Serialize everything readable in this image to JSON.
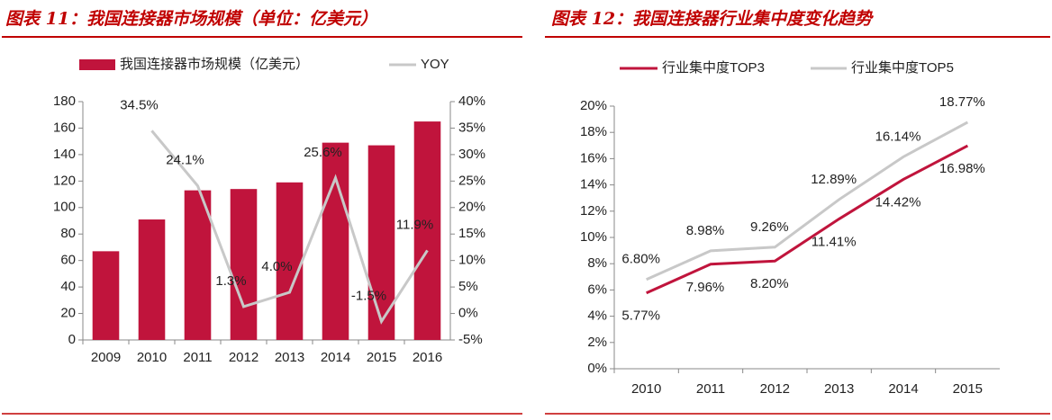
{
  "chart_data": [
    {
      "type": "bar",
      "title": "图表 11：我国连接器市场规模（单位：亿美元）",
      "categories": [
        "2009",
        "2010",
        "2011",
        "2012",
        "2013",
        "2014",
        "2015",
        "2016"
      ],
      "series": [
        {
          "name": "我国连接器市场规模（亿美元）",
          "type": "bar",
          "color": "#c0143c",
          "values": [
            67,
            91,
            113,
            114,
            119,
            149,
            147,
            165
          ]
        },
        {
          "name": "YOY",
          "type": "line",
          "axis": "y2",
          "color": "#c8c8c8",
          "values": [
            null,
            34.5,
            24.1,
            1.3,
            4.0,
            25.6,
            -1.5,
            11.9
          ],
          "value_labels": [
            null,
            "34.5%",
            "24.1%",
            "1.3%",
            "4.0%",
            "25.6%",
            "-1.5%",
            "11.9%"
          ]
        }
      ],
      "ylim": [
        0,
        180
      ],
      "yticks": [
        0,
        20,
        40,
        60,
        80,
        100,
        120,
        140,
        160,
        180
      ],
      "y2lim": [
        -5,
        40
      ],
      "y2ticks": [
        {
          "value": -5,
          "label": "-5%"
        },
        {
          "value": 0,
          "label": "0%"
        },
        {
          "value": 5,
          "label": "5%"
        },
        {
          "value": 10,
          "label": "10%"
        },
        {
          "value": 15,
          "label": "15%"
        },
        {
          "value": 20,
          "label": "20%"
        },
        {
          "value": 25,
          "label": "25%"
        },
        {
          "value": 30,
          "label": "30%"
        },
        {
          "value": 35,
          "label": "35%"
        },
        {
          "value": 40,
          "label": "40%"
        }
      ],
      "legend": "top",
      "grid": false
    },
    {
      "type": "line",
      "title": "图表 12：我国连接器行业集中度变化趋势",
      "categories": [
        "2010",
        "2011",
        "2012",
        "2013",
        "2014",
        "2015"
      ],
      "series": [
        {
          "name": "行业集中度TOP3",
          "type": "line",
          "color": "#c0143c",
          "values": [
            5.77,
            7.96,
            8.2,
            11.41,
            14.42,
            16.98
          ],
          "value_labels": [
            "5.77%",
            "7.96%",
            "8.20%",
            "11.41%",
            "14.42%",
            "16.98%"
          ]
        },
        {
          "name": "行业集中度TOP5",
          "type": "line",
          "color": "#c8c8c8",
          "values": [
            6.8,
            8.98,
            9.26,
            12.89,
            16.14,
            18.77
          ],
          "value_labels": [
            "6.80%",
            "8.98%",
            "9.26%",
            "12.89%",
            "16.14%",
            "18.77%"
          ]
        }
      ],
      "ylim": [
        0,
        20
      ],
      "yticks": [
        {
          "value": 0,
          "label": "0%"
        },
        {
          "value": 2,
          "label": "2%"
        },
        {
          "value": 4,
          "label": "4%"
        },
        {
          "value": 6,
          "label": "6%"
        },
        {
          "value": 8,
          "label": "8%"
        },
        {
          "value": 10,
          "label": "10%"
        },
        {
          "value": 12,
          "label": "12%"
        },
        {
          "value": 14,
          "label": "14%"
        },
        {
          "value": 16,
          "label": "16%"
        },
        {
          "value": 18,
          "label": "18%"
        },
        {
          "value": 20,
          "label": "20%"
        }
      ],
      "legend": "top",
      "grid": false
    }
  ]
}
